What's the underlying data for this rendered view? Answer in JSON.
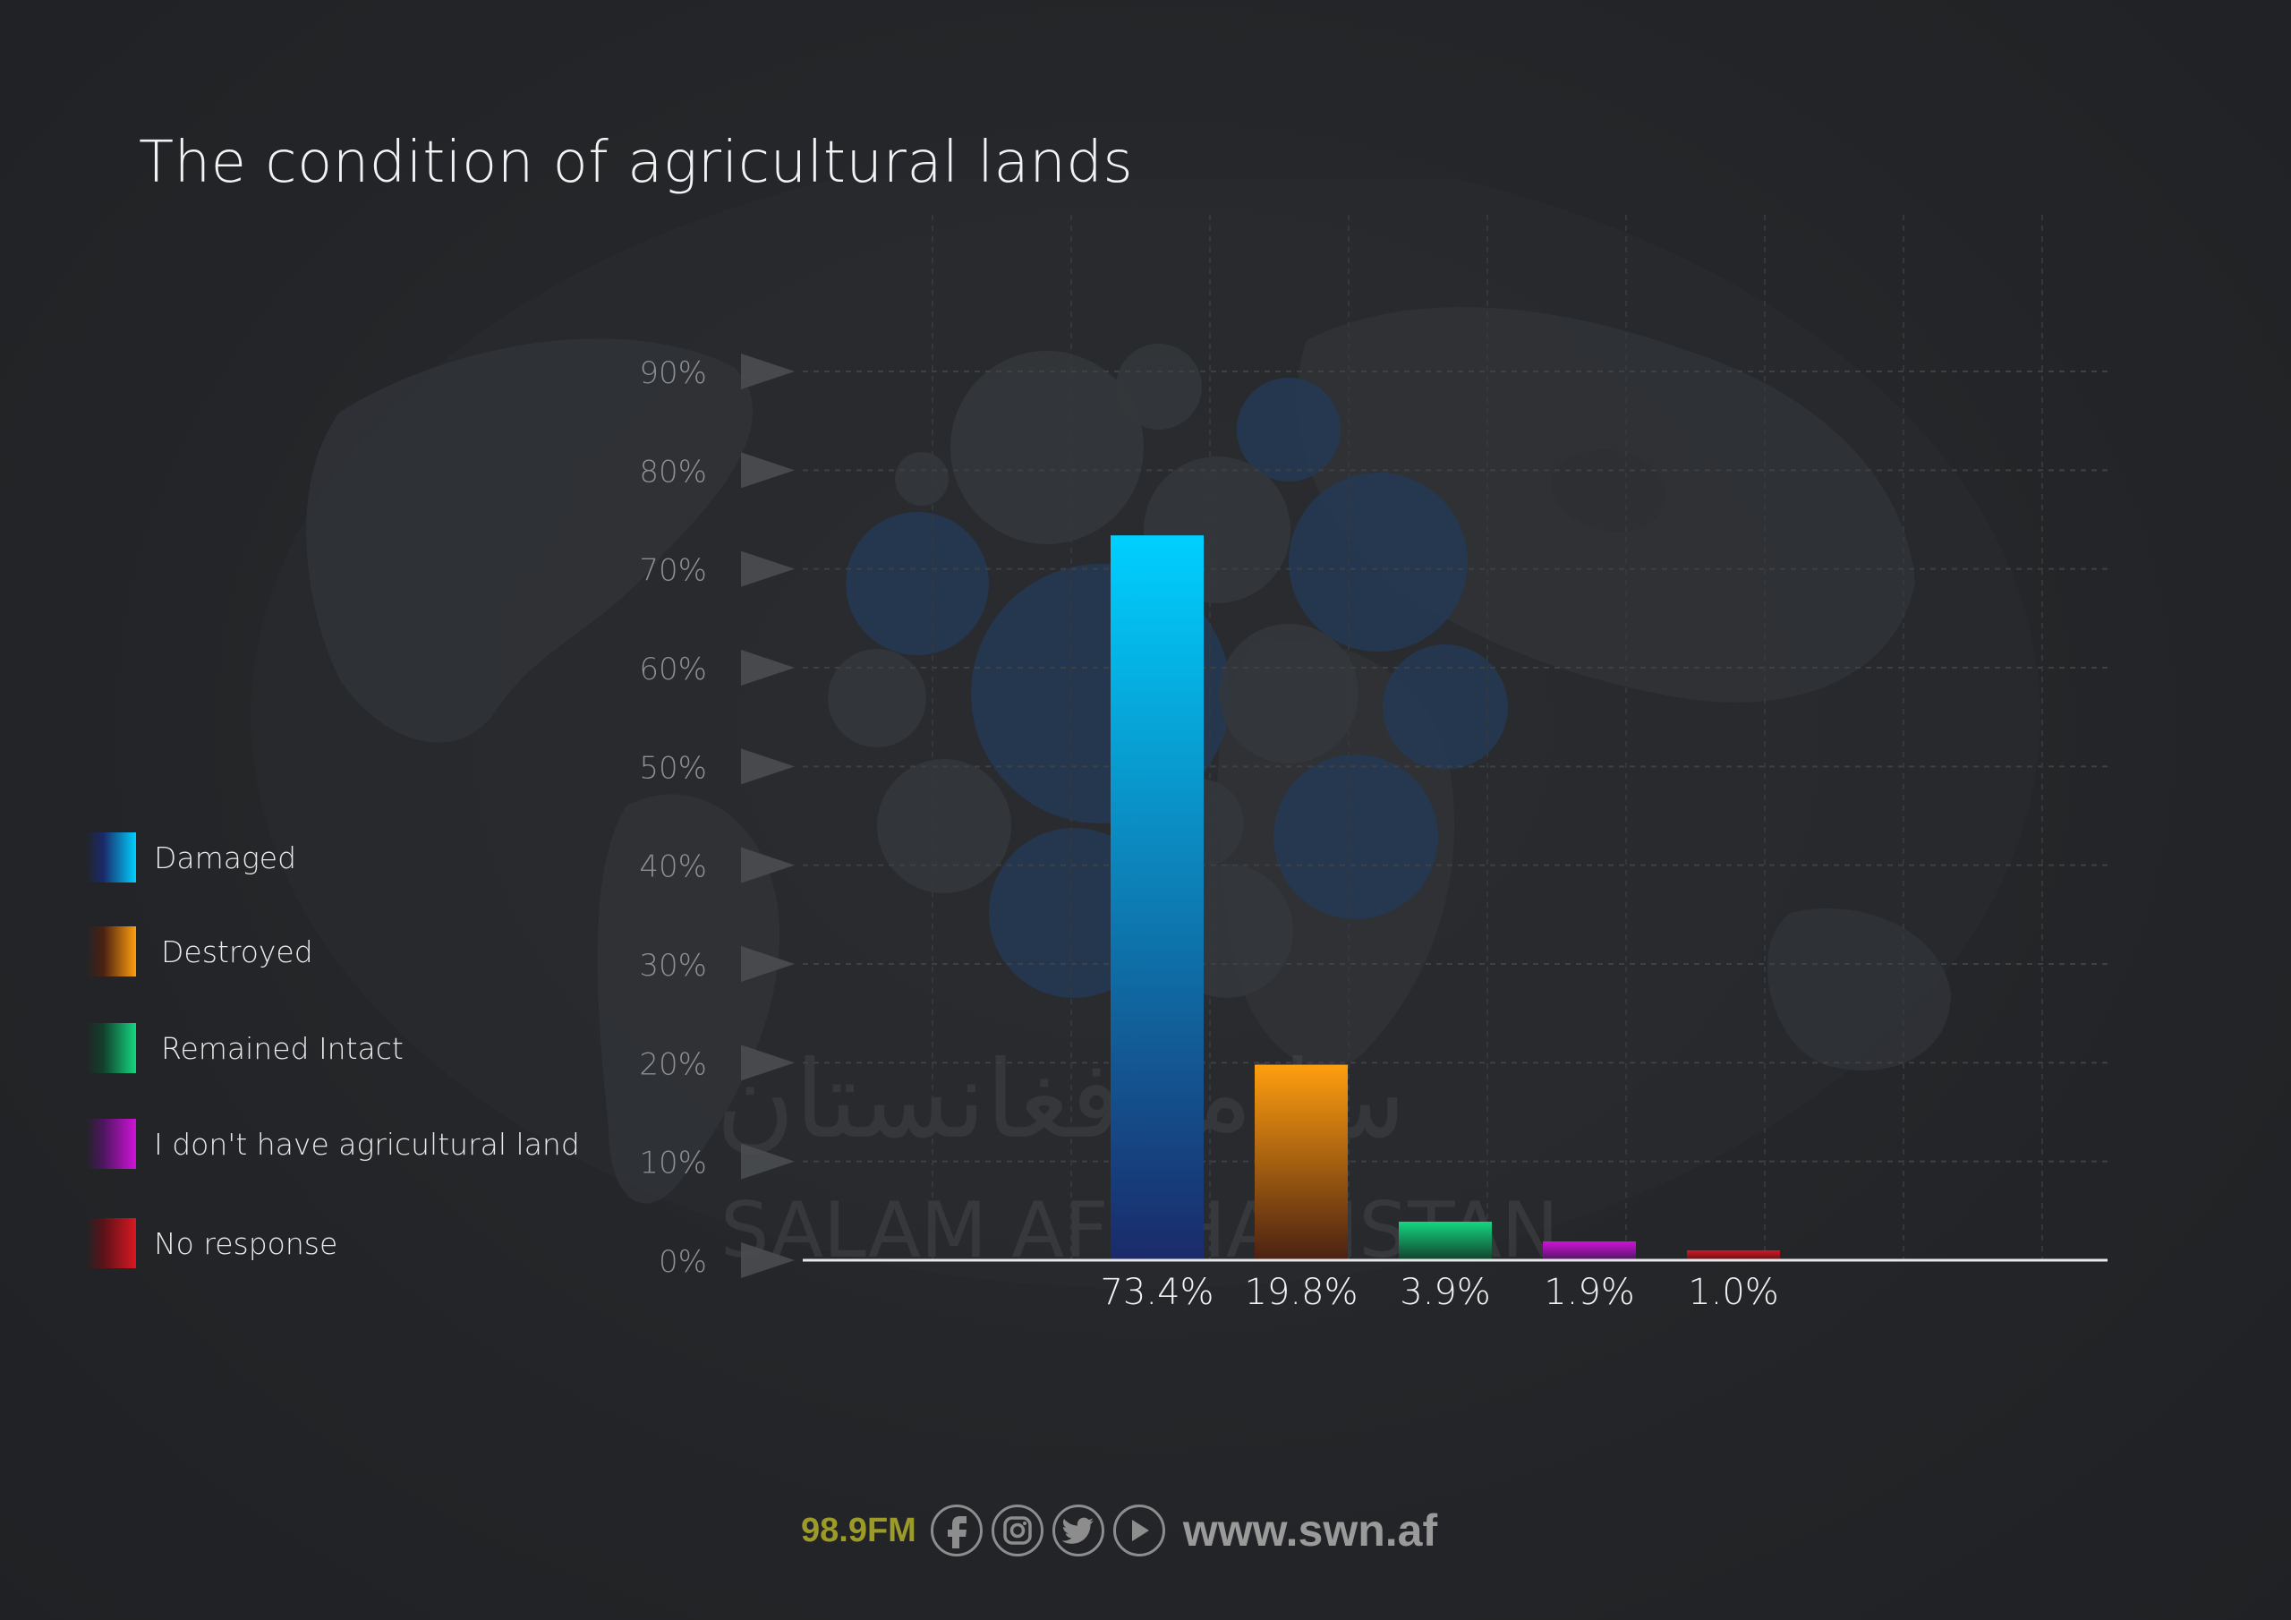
{
  "chart_data": {
    "type": "bar",
    "title": "The condition of agricultural lands",
    "xlabel": "",
    "ylabel": "",
    "ylim": [
      0,
      90
    ],
    "y_ticks": [
      "0%",
      "10%",
      "20%",
      "30%",
      "40%",
      "50%",
      "60%",
      "70%",
      "80%",
      "90%"
    ],
    "y_tick_values": [
      0,
      10,
      20,
      30,
      40,
      50,
      60,
      70,
      80,
      90
    ],
    "grid": true,
    "legend_position": "left",
    "categories": [
      "Damaged",
      "Destroyed",
      "Remained Intact",
      "I don't have agricultural land",
      "No response"
    ],
    "values": [
      73.4,
      19.8,
      3.9,
      1.9,
      1.0
    ],
    "value_labels": [
      "73.4%",
      "19.8%",
      "3.9%",
      "1.9%",
      "1.0%"
    ],
    "colors": [
      {
        "top": "#00d0ff",
        "bottom": "#1a2a6a"
      },
      {
        "top": "#ff9e0f",
        "bottom": "#4a2112"
      },
      {
        "top": "#14d680",
        "bottom": "#12402c"
      },
      {
        "top": "#d012d8",
        "bottom": "#4e1660"
      },
      {
        "top": "#d81822",
        "bottom": "#5c1218"
      }
    ]
  },
  "legend": {
    "items": [
      {
        "label": "Damaged"
      },
      {
        "label": "Destroyed"
      },
      {
        "label": "Remained Intact"
      },
      {
        "label": "I don't have agricultural land"
      },
      {
        "label": "No response"
      }
    ]
  },
  "watermark": {
    "english": "SALAM AFGHANISTAN",
    "arabic": "سلام افغانستان"
  },
  "footer": {
    "frequency": "98.9FM",
    "website": "www.swn.af",
    "social_icons": [
      "facebook-icon",
      "instagram-icon",
      "twitter-icon",
      "youtube-icon"
    ]
  }
}
